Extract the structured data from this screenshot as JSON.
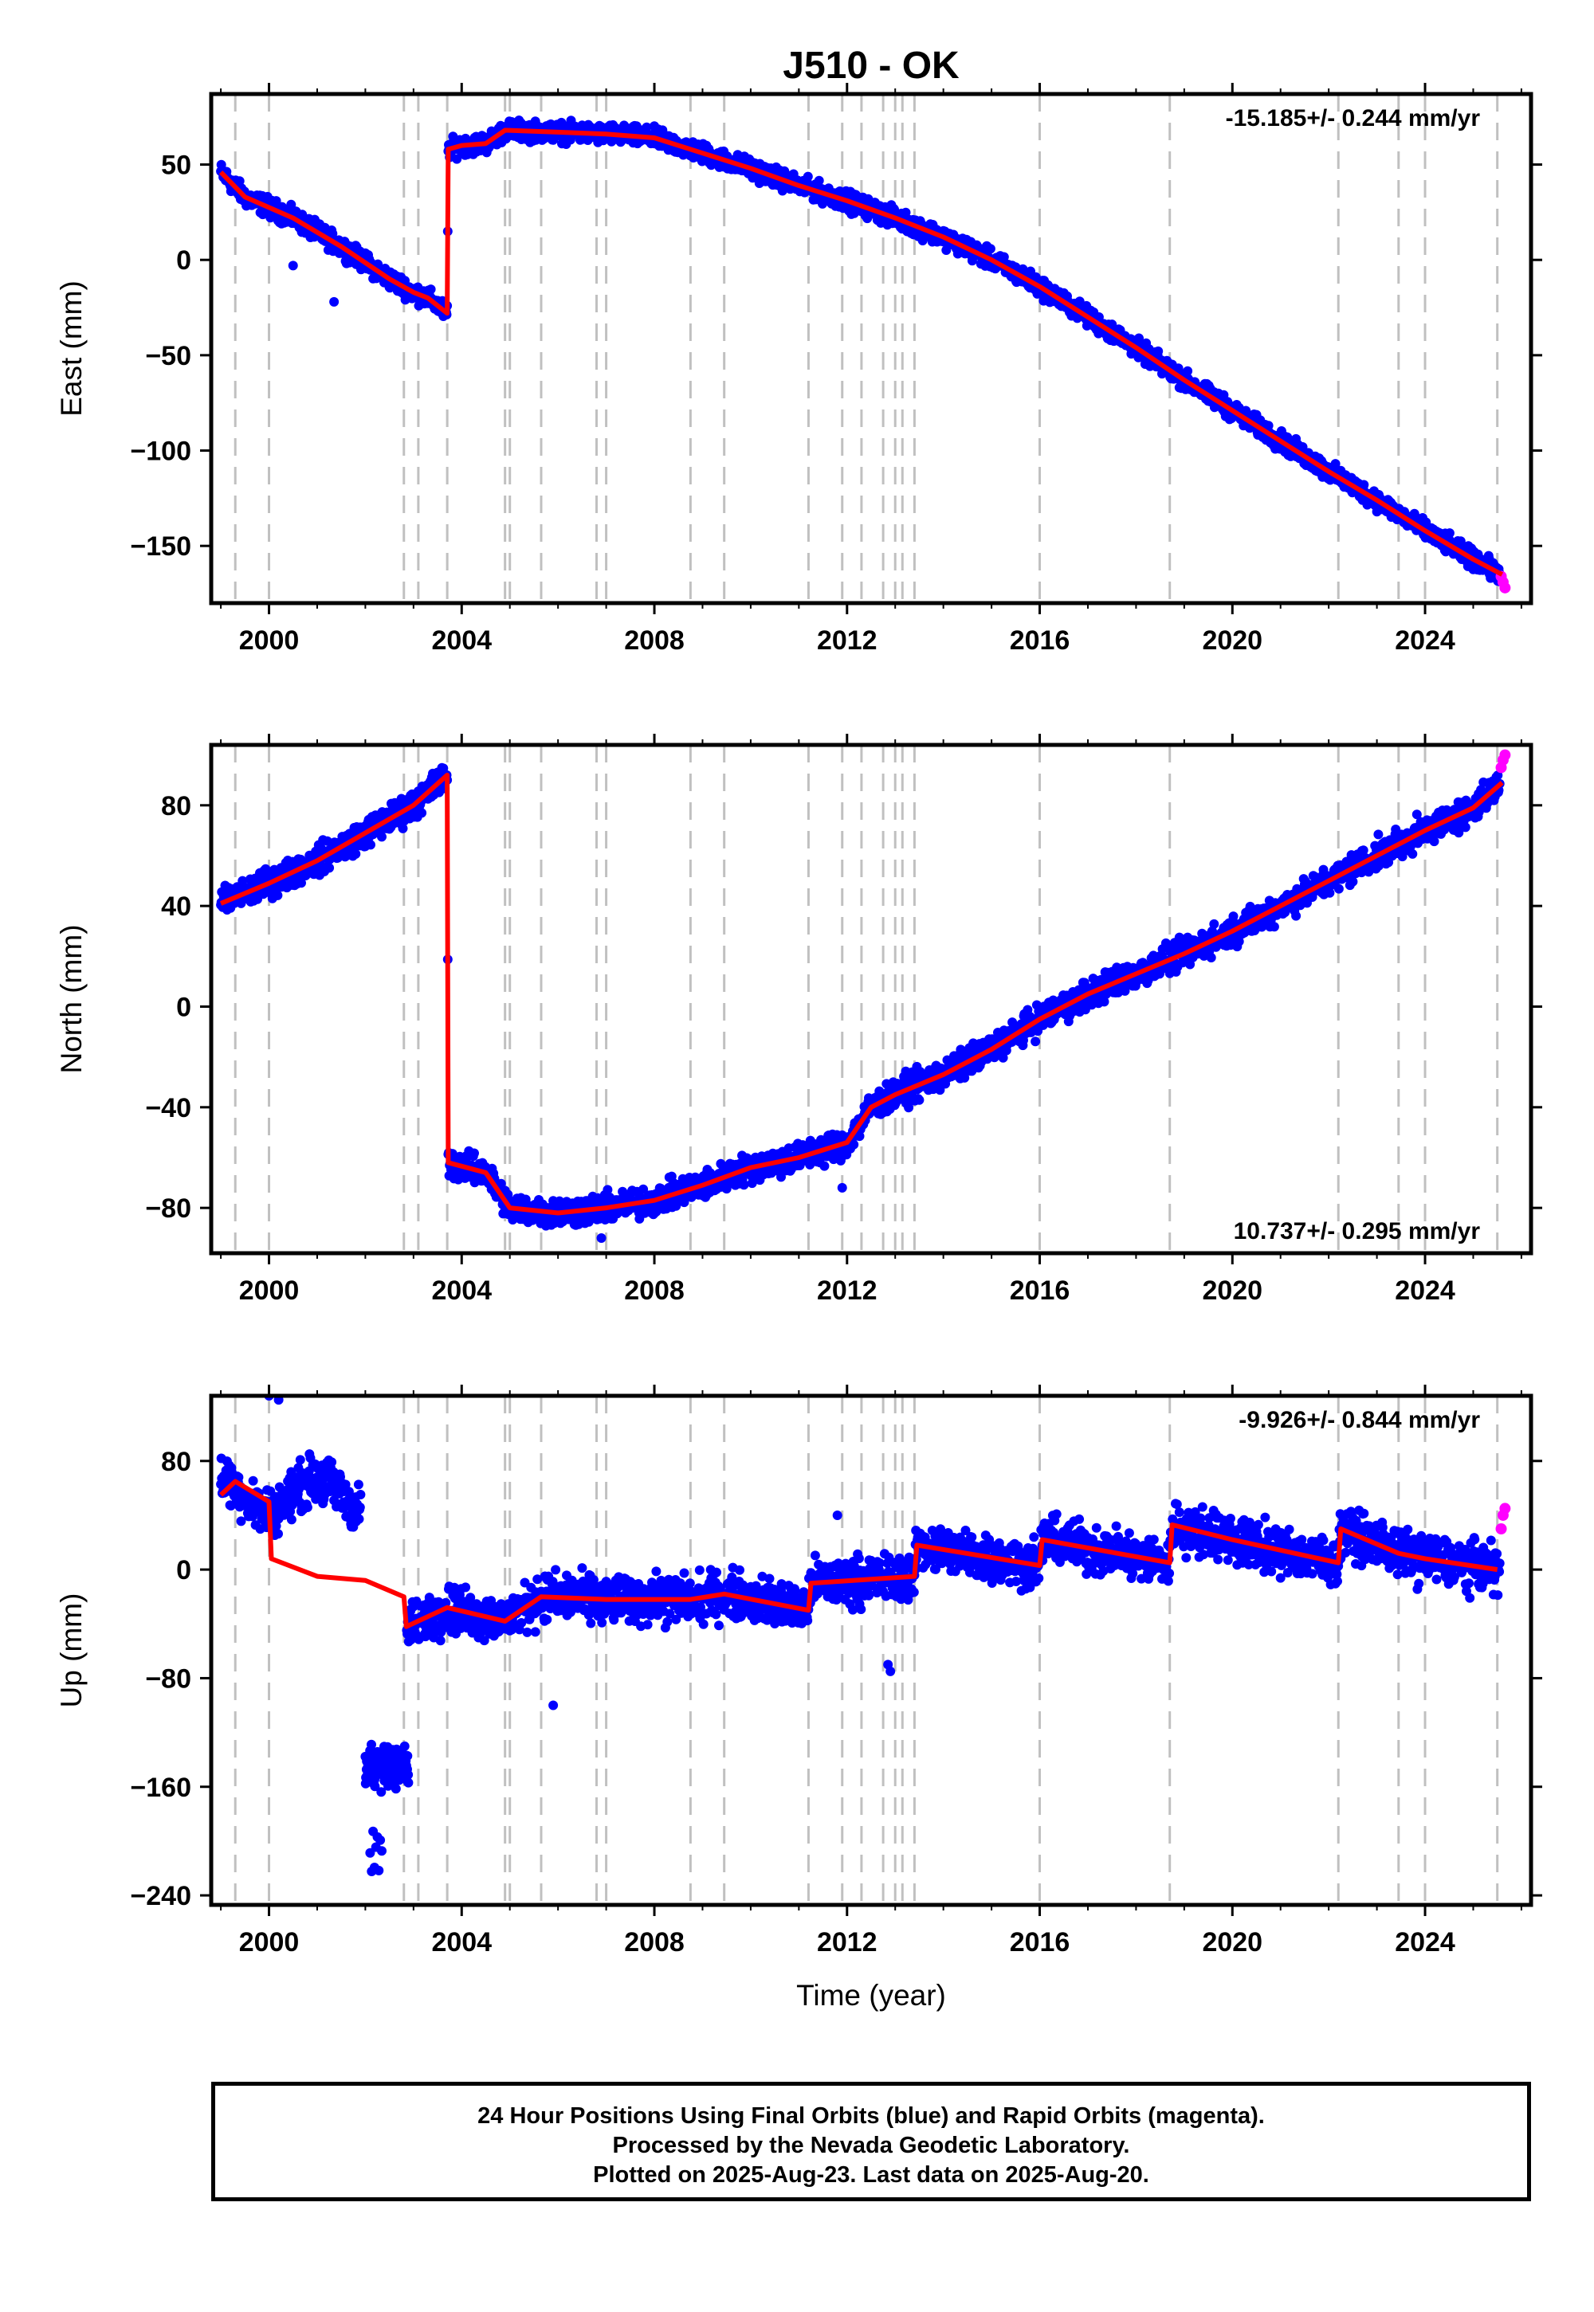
{
  "chart_data": {
    "type": "scatter",
    "title": "J510 - OK",
    "xlabel": "Time (year)",
    "xlim": [
      1998.8,
      2026.2
    ],
    "x_ticks": [
      2000,
      2004,
      2008,
      2012,
      2016,
      2020,
      2024
    ],
    "x_tick_labels": [
      "2000",
      "2004",
      "2008",
      "2012",
      "2016",
      "2020",
      "2024"
    ],
    "colors": {
      "final_orbits": "#0000ff",
      "rapid_orbits": "#ff00ff",
      "model_fit": "#ff0000",
      "event_lines": "#c0c0c0"
    },
    "event_lines": [
      1999.3,
      2000.0,
      2002.8,
      2003.1,
      2003.7,
      2004.9,
      2005.0,
      2005.65,
      2006.8,
      2007.0,
      2008.75,
      2009.45,
      2011.2,
      2011.9,
      2012.3,
      2012.75,
      2013.0,
      2013.15,
      2013.4,
      2016.0,
      2018.7,
      2022.2,
      2023.45,
      2024.0,
      2025.5
    ],
    "panels": [
      {
        "ylabel": "East (mm)",
        "ylim": [
          -180,
          87
        ],
        "y_ticks": [
          50,
          0,
          -50,
          -100,
          -150
        ],
        "y_tick_labels": [
          "50",
          "0",
          "−50",
          "−100",
          "−150"
        ],
        "rate_label": "-15.185+/- 0.244 mm/yr",
        "rate_position": "top-right",
        "model_knots": [
          [
            1999.0,
            46
          ],
          [
            1999.5,
            33
          ],
          [
            2000.5,
            22
          ],
          [
            2001.5,
            7
          ],
          [
            2002.5,
            -10
          ],
          [
            2003.0,
            -17
          ],
          [
            2003.3,
            -20
          ],
          [
            2003.7,
            -28
          ],
          [
            2003.72,
            58
          ],
          [
            2004.0,
            60
          ],
          [
            2004.5,
            61
          ],
          [
            2004.9,
            68
          ],
          [
            2006.0,
            67
          ],
          [
            2007.0,
            66
          ],
          [
            2008.0,
            64
          ],
          [
            2009.0,
            56
          ],
          [
            2010.0,
            48
          ],
          [
            2011.0,
            39
          ],
          [
            2012.0,
            31
          ],
          [
            2013.0,
            22
          ],
          [
            2014.0,
            12
          ],
          [
            2015.0,
            0
          ],
          [
            2016.0,
            -14
          ],
          [
            2017.0,
            -30
          ],
          [
            2018.0,
            -46
          ],
          [
            2019.0,
            -63
          ],
          [
            2020.0,
            -79
          ],
          [
            2021.0,
            -95
          ],
          [
            2022.0,
            -111
          ],
          [
            2023.0,
            -126
          ],
          [
            2024.0,
            -142
          ],
          [
            2025.0,
            -157
          ],
          [
            2025.6,
            -165
          ]
        ],
        "noise": 3.5,
        "outliers": [
          [
            2001.35,
            -22
          ],
          [
            2000.5,
            -3
          ]
        ],
        "rapid_points": [
          [
            2025.58,
            -166
          ],
          [
            2025.62,
            -169
          ],
          [
            2025.66,
            -172
          ]
        ]
      },
      {
        "ylabel": "North (mm)",
        "ylim": [
          -98,
          104
        ],
        "y_ticks": [
          80,
          40,
          0,
          -40,
          -80
        ],
        "y_tick_labels": [
          "80",
          "40",
          "0",
          "−40",
          "−80"
        ],
        "rate_label": "10.737+/- 0.295 mm/yr",
        "rate_position": "bottom-right",
        "model_knots": [
          [
            1999.0,
            41
          ],
          [
            2000.0,
            49
          ],
          [
            2001.0,
            58
          ],
          [
            2002.0,
            69
          ],
          [
            2003.0,
            80
          ],
          [
            2003.7,
            92
          ],
          [
            2003.72,
            -62
          ],
          [
            2004.5,
            -66
          ],
          [
            2005.0,
            -80
          ],
          [
            2006.0,
            -82
          ],
          [
            2007.0,
            -80
          ],
          [
            2008.0,
            -77
          ],
          [
            2009.0,
            -71
          ],
          [
            2010.0,
            -64
          ],
          [
            2011.0,
            -60
          ],
          [
            2012.0,
            -54
          ],
          [
            2012.5,
            -40
          ],
          [
            2013.0,
            -35
          ],
          [
            2014.0,
            -27
          ],
          [
            2015.0,
            -17
          ],
          [
            2016.0,
            -5
          ],
          [
            2017.0,
            5
          ],
          [
            2018.0,
            13
          ],
          [
            2019.0,
            21
          ],
          [
            2020.0,
            30
          ],
          [
            2021.0,
            40
          ],
          [
            2022.0,
            50
          ],
          [
            2023.0,
            60
          ],
          [
            2024.0,
            70
          ],
          [
            2025.0,
            79
          ],
          [
            2025.6,
            89
          ]
        ],
        "noise": 4.0,
        "outliers": [
          [
            2006.9,
            -92
          ],
          [
            2011.9,
            -72
          ]
        ],
        "rapid_points": [
          [
            2025.58,
            95
          ],
          [
            2025.62,
            98
          ],
          [
            2025.66,
            100
          ]
        ]
      },
      {
        "ylabel": "Up (mm)",
        "ylim": [
          -247,
          128
        ],
        "y_ticks": [
          80,
          0,
          -80,
          -160,
          -240
        ],
        "y_tick_labels": [
          "80",
          "0",
          "−80",
          "−160",
          "−240"
        ],
        "rate_label": "-9.926+/- 0.844 mm/yr",
        "rate_position": "top-right",
        "model_knots": [
          [
            1999.0,
            55
          ],
          [
            1999.3,
            65
          ],
          [
            2000.0,
            50
          ],
          [
            2000.05,
            8
          ],
          [
            2001.0,
            -5
          ],
          [
            2002.0,
            -8
          ],
          [
            2002.8,
            -20
          ],
          [
            2002.85,
            -42
          ],
          [
            2003.7,
            -28
          ],
          [
            2004.9,
            -38
          ],
          [
            2005.65,
            -20
          ],
          [
            2007.0,
            -22
          ],
          [
            2008.75,
            -22
          ],
          [
            2009.45,
            -18
          ],
          [
            2011.2,
            -30
          ],
          [
            2011.25,
            -10
          ],
          [
            2013.4,
            -5
          ],
          [
            2013.45,
            18
          ],
          [
            2016.0,
            3
          ],
          [
            2016.05,
            22
          ],
          [
            2018.7,
            5
          ],
          [
            2018.75,
            33
          ],
          [
            2020.0,
            22
          ],
          [
            2022.2,
            5
          ],
          [
            2022.25,
            30
          ],
          [
            2023.45,
            12
          ],
          [
            2024.0,
            8
          ],
          [
            2025.5,
            0
          ]
        ],
        "noise": 12,
        "outliers": [
          [
            2000.0,
            128
          ],
          [
            2000.2,
            125
          ],
          [
            2005.9,
            -100
          ],
          [
            2012.85,
            -70
          ],
          [
            2012.9,
            -75
          ],
          [
            2011.8,
            40
          ]
        ],
        "rapid_points": [
          [
            2025.58,
            30
          ],
          [
            2025.62,
            40
          ],
          [
            2025.66,
            45
          ]
        ]
      }
    ]
  },
  "footer": {
    "line1": "24 Hour Positions Using Final Orbits (blue) and Rapid Orbits (magenta).",
    "line2": "Processed by the Nevada Geodetic Laboratory.",
    "line3": "Plotted on 2025-Aug-23. Last data on 2025-Aug-20."
  }
}
